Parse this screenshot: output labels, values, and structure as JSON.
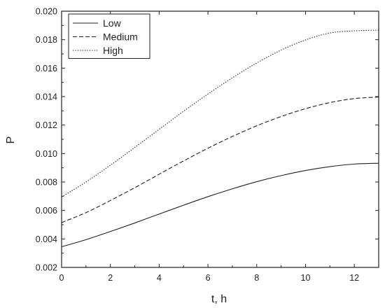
{
  "chart_data": {
    "type": "line",
    "title": "",
    "xlabel": "t, h",
    "ylabel": "P",
    "xlim": [
      0,
      13
    ],
    "ylim": [
      0.002,
      0.02
    ],
    "x_ticks": [
      0,
      2,
      4,
      6,
      8,
      10,
      12
    ],
    "x_tick_labels": [
      "0",
      "2",
      "4",
      "6",
      "8",
      "10",
      "12"
    ],
    "y_ticks": [
      0.002,
      0.004,
      0.006,
      0.008,
      0.01,
      0.012,
      0.014,
      0.016,
      0.018,
      0.02
    ],
    "y_tick_labels": [
      "0.002",
      "0.004",
      "0.006",
      "0.008",
      "0.010",
      "0.012",
      "0.014",
      "0.016",
      "0.018",
      "0.020"
    ],
    "grid": false,
    "legend_position": "top-left",
    "x": [
      0,
      1,
      2,
      3,
      4,
      5,
      6,
      7,
      8,
      9,
      10,
      11,
      12,
      13
    ],
    "series": [
      {
        "name": "Low",
        "line_style": "solid",
        "color": "#222222",
        "values": [
          0.00345,
          0.00395,
          0.00452,
          0.00512,
          0.00575,
          0.00637,
          0.00697,
          0.00752,
          0.00802,
          0.00845,
          0.00881,
          0.00908,
          0.00926,
          0.00932
        ]
      },
      {
        "name": "Medium",
        "line_style": "dashed",
        "color": "#222222",
        "values": [
          0.00515,
          0.00585,
          0.0067,
          0.0076,
          0.00855,
          0.00948,
          0.01037,
          0.0112,
          0.01195,
          0.0126,
          0.01315,
          0.01358,
          0.01386,
          0.01397
        ]
      },
      {
        "name": "High",
        "line_style": "dotted",
        "color": "#222222",
        "values": [
          0.00695,
          0.008,
          0.00918,
          0.01043,
          0.0117,
          0.01297,
          0.01418,
          0.01532,
          0.01636,
          0.01727,
          0.01798,
          0.01847,
          0.01862,
          0.01867
        ]
      }
    ]
  }
}
